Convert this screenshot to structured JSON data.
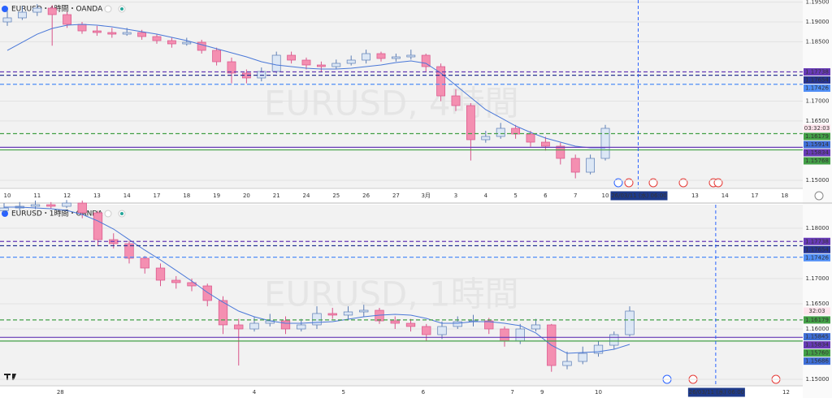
{
  "chart_data": [
    {
      "type": "candlestick",
      "title": "EURUSD・4時間・OANDA",
      "watermark": "EURUSD, 4時間",
      "ylim": [
        1.14795,
        1.19554
      ],
      "yticks": [
        {
          "value": 1.195,
          "label": "1.19500"
        },
        {
          "value": 1.19,
          "label": "1.19000"
        },
        {
          "value": 1.185,
          "label": "1.18500"
        },
        {
          "value": 1.17,
          "label": "1.17000"
        },
        {
          "value": 1.165,
          "label": "1.16500"
        },
        {
          "value": 1.15,
          "label": "1.15000"
        }
      ],
      "up_color": "#dce7f5",
      "down_color": "#f48fb1",
      "ohlc": [
        [
          1.19,
          1.193,
          1.189,
          1.19103
        ],
        [
          1.19103,
          1.194,
          1.1905,
          1.19246
        ],
        [
          1.19246,
          1.1945,
          1.1915,
          1.19349
        ],
        [
          1.19349,
          1.1942,
          1.184,
          1.19185
        ],
        [
          1.19185,
          1.1925,
          1.1885,
          1.18939
        ],
        [
          1.18939,
          1.19,
          1.187,
          1.18774
        ],
        [
          1.18774,
          1.189,
          1.1865,
          1.18733
        ],
        [
          1.18733,
          1.1885,
          1.186,
          1.18692
        ],
        [
          1.18692,
          1.1885,
          1.1865,
          1.18733
        ],
        [
          1.18733,
          1.188,
          1.1855,
          1.18631
        ],
        [
          1.18631,
          1.187,
          1.1845,
          1.18528
        ],
        [
          1.18528,
          1.186,
          1.1835,
          1.18446
        ],
        [
          1.18446,
          1.186,
          1.184,
          1.18487
        ],
        [
          1.18487,
          1.1855,
          1.182,
          1.18282
        ],
        [
          1.18282,
          1.1835,
          1.179,
          1.17995
        ],
        [
          1.17995,
          1.181,
          1.1745,
          1.17708
        ],
        [
          1.17708,
          1.178,
          1.1745,
          1.17585
        ],
        [
          1.17585,
          1.1785,
          1.175,
          1.17749
        ],
        [
          1.17749,
          1.1825,
          1.177,
          1.18159
        ],
        [
          1.18159,
          1.1825,
          1.1795,
          1.18036
        ],
        [
          1.18036,
          1.181,
          1.178,
          1.17913
        ],
        [
          1.17913,
          1.18,
          1.1775,
          1.17872
        ],
        [
          1.17872,
          1.1805,
          1.178,
          1.17954
        ],
        [
          1.17954,
          1.1815,
          1.179,
          1.18036
        ],
        [
          1.18036,
          1.183,
          1.1795,
          1.182
        ],
        [
          1.182,
          1.1825,
          1.18,
          1.18077
        ],
        [
          1.18077,
          1.182,
          1.18,
          1.18118
        ],
        [
          1.18118,
          1.183,
          1.1805,
          1.18159
        ],
        [
          1.18159,
          1.182,
          1.1775,
          1.17872
        ],
        [
          1.17872,
          1.1795,
          1.17,
          1.17133
        ],
        [
          1.17133,
          1.173,
          1.1675,
          1.16887
        ],
        [
          1.16887,
          1.1695,
          1.155,
          1.16026
        ],
        [
          1.16026,
          1.1625,
          1.1595,
          1.16108
        ],
        [
          1.16108,
          1.1645,
          1.1605,
          1.16313
        ],
        [
          1.16313,
          1.164,
          1.1605,
          1.16169
        ],
        [
          1.16169,
          1.1625,
          1.1585,
          1.15964
        ],
        [
          1.15964,
          1.161,
          1.1575,
          1.15862
        ],
        [
          1.15862,
          1.1595,
          1.154,
          1.15554
        ],
        [
          1.15554,
          1.1565,
          1.1505,
          1.15205
        ],
        [
          1.15205,
          1.1565,
          1.1515,
          1.15554
        ],
        [
          1.15554,
          1.164,
          1.155,
          1.16313
        ]
      ],
      "ma": {
        "color": "#4a78d8",
        "values": [
          1.18282,
          1.18487,
          1.18692,
          1.18836,
          1.18918,
          1.18939,
          1.18918,
          1.18877,
          1.18815,
          1.18754,
          1.18692,
          1.1861,
          1.18528,
          1.18426,
          1.18323,
          1.18221,
          1.18118,
          1.17995,
          1.17913,
          1.17872,
          1.17831,
          1.1781,
          1.1781,
          1.17831,
          1.17872,
          1.17913,
          1.17974,
          1.18015,
          1.17954,
          1.17708,
          1.174,
          1.17092,
          1.16785,
          1.1658,
          1.16374,
          1.1621,
          1.16067,
          1.15964,
          1.15862,
          1.15821,
          1.15821
        ]
      },
      "levels": [
        {
          "value": 1.17738,
          "label": "1.17738",
          "color": "#673ab7",
          "line": "dashed"
        },
        {
          "value": 1.17654,
          "label": "1.17654",
          "color": "#283593",
          "line": "dashed"
        },
        {
          "value": 1.17426,
          "label": "1.17426",
          "color": "#4f8ef7",
          "line": "dashed"
        },
        {
          "value": 1.16179,
          "label": "1.16179",
          "color": "#43a047",
          "line": "dashed"
        },
        {
          "value": 1.15914,
          "label": "1.15914",
          "color": "#3f6fd8"
        },
        {
          "value": 1.15834,
          "label": "1.15834",
          "color": "#673ab7",
          "line": "solid"
        },
        {
          "value": 1.15768,
          "label": "1.15768",
          "color": "#43a047",
          "line": "solid"
        }
      ],
      "countdown": "03:32:03",
      "time_labels": [
        {
          "label": "10",
          "x": 0
        },
        {
          "label": "11",
          "x": 2
        },
        {
          "label": "12",
          "x": 4
        },
        {
          "label": "13",
          "x": 6
        },
        {
          "label": "14",
          "x": 8
        },
        {
          "label": "17",
          "x": 10
        },
        {
          "label": "18",
          "x": 12
        },
        {
          "label": "19",
          "x": 14
        },
        {
          "label": "20",
          "x": 16
        },
        {
          "label": "21",
          "x": 18
        },
        {
          "label": "24",
          "x": 20
        },
        {
          "label": "25",
          "x": 22
        },
        {
          "label": "26",
          "x": 24
        },
        {
          "label": "27",
          "x": 26
        },
        {
          "label": "3月",
          "x": 28
        },
        {
          "label": "3",
          "x": 30
        },
        {
          "label": "4",
          "x": 32
        },
        {
          "label": "5",
          "x": 34
        },
        {
          "label": "6",
          "x": 36
        },
        {
          "label": "7",
          "x": 38
        },
        {
          "label": "10",
          "x": 40
        },
        {
          "label": "13",
          "x": 46
        },
        {
          "label": "14",
          "x": 48
        },
        {
          "label": "17",
          "x": 50
        },
        {
          "label": "18",
          "x": 52
        }
      ],
      "cursor": {
        "label": "26/03/11 (水)  06:00",
        "x": 42.2
      }
    },
    {
      "type": "candlestick",
      "title": "EURUSD・1時間・OANDA",
      "watermark": "EURUSD, 1時間",
      "ylim": [
        1.14871,
        1.18468
      ],
      "yticks": [
        {
          "value": 1.18,
          "label": "1.18000"
        },
        {
          "value": 1.17,
          "label": "1.17000"
        },
        {
          "value": 1.165,
          "label": "1.16500"
        },
        {
          "value": 1.16,
          "label": "1.16000"
        },
        {
          "value": 1.15,
          "label": "1.15000"
        }
      ],
      "up_color": "#dce7f5",
      "down_color": "#f48fb1",
      "ohlc": [
        [
          1.1835,
          1.185,
          1.183,
          1.18403
        ],
        [
          1.18403,
          1.1852,
          1.1835,
          1.18436
        ],
        [
          1.18436,
          1.1855,
          1.1838,
          1.18468
        ],
        [
          1.18468,
          1.1852,
          1.1838,
          1.18436
        ],
        [
          1.18436,
          1.1856,
          1.184,
          1.185
        ],
        [
          1.185,
          1.1855,
          1.182,
          1.18307
        ],
        [
          1.18307,
          1.1835,
          1.1765,
          1.17774
        ],
        [
          1.17774,
          1.179,
          1.176,
          1.17694
        ],
        [
          1.17694,
          1.1775,
          1.173,
          1.17404
        ],
        [
          1.17404,
          1.1745,
          1.171,
          1.1721
        ],
        [
          1.1721,
          1.173,
          1.1685,
          1.16968
        ],
        [
          1.16968,
          1.1705,
          1.168,
          1.1692
        ],
        [
          1.1692,
          1.17,
          1.1675,
          1.16855
        ],
        [
          1.16855,
          1.169,
          1.1645,
          1.16565
        ],
        [
          1.16565,
          1.1665,
          1.159,
          1.16081
        ],
        [
          1.16081,
          1.162,
          1.15274,
          1.16
        ],
        [
          1.16,
          1.1625,
          1.1595,
          1.16113
        ],
        [
          1.16113,
          1.163,
          1.1605,
          1.16161
        ],
        [
          1.16161,
          1.1625,
          1.159,
          1.16
        ],
        [
          1.16,
          1.162,
          1.1595,
          1.16081
        ],
        [
          1.16081,
          1.1645,
          1.16,
          1.16307
        ],
        [
          1.16307,
          1.1642,
          1.162,
          1.16275
        ],
        [
          1.16275,
          1.1645,
          1.162,
          1.16339
        ],
        [
          1.16339,
          1.1648,
          1.1625,
          1.16371
        ],
        [
          1.16371,
          1.1642,
          1.161,
          1.16161
        ],
        [
          1.16161,
          1.1625,
          1.16,
          1.16113
        ],
        [
          1.16113,
          1.162,
          1.1595,
          1.16049
        ],
        [
          1.16049,
          1.161,
          1.1575,
          1.15887
        ],
        [
          1.15887,
          1.1615,
          1.158,
          1.16049
        ],
        [
          1.16049,
          1.1625,
          1.16,
          1.16145
        ],
        [
          1.16145,
          1.1628,
          1.1605,
          1.16161
        ],
        [
          1.16161,
          1.1622,
          1.159,
          1.16
        ],
        [
          1.16,
          1.1605,
          1.1565,
          1.15758
        ],
        [
          1.15758,
          1.161,
          1.157,
          1.16
        ],
        [
          1.16,
          1.162,
          1.1595,
          1.16081
        ],
        [
          1.16081,
          1.161,
          1.1515,
          1.15274
        ],
        [
          1.15274,
          1.1555,
          1.152,
          1.15355
        ],
        [
          1.15355,
          1.1565,
          1.153,
          1.15516
        ],
        [
          1.15516,
          1.1575,
          1.1545,
          1.15677
        ],
        [
          1.15677,
          1.1595,
          1.156,
          1.15887
        ],
        [
          1.15887,
          1.1645,
          1.1585,
          1.16355
        ]
      ],
      "ma": {
        "color": "#4a78d8",
        "values": [
          1.1842,
          1.1842,
          1.18403,
          1.18387,
          1.18355,
          1.18274,
          1.18145,
          1.17984,
          1.17774,
          1.17565,
          1.17371,
          1.17162,
          1.16952,
          1.16726,
          1.16532,
          1.16355,
          1.16242,
          1.16161,
          1.16113,
          1.16113,
          1.16129,
          1.16145,
          1.16194,
          1.16242,
          1.16275,
          1.16291,
          1.16275,
          1.1621,
          1.16113,
          1.16113,
          1.16145,
          1.16145,
          1.16113,
          1.16065,
          1.1592,
          1.15677,
          1.15516,
          1.15532,
          1.15548,
          1.15597,
          1.15694
        ]
      },
      "levels": [
        {
          "value": 1.17738,
          "label": "1.17738",
          "color": "#673ab7",
          "line": "dashed"
        },
        {
          "value": 1.17654,
          "label": "1.17654",
          "color": "#283593",
          "line": "dashed"
        },
        {
          "value": 1.17426,
          "label": "1.17426",
          "color": "#4f8ef7",
          "line": "dashed"
        },
        {
          "value": 1.16179,
          "label": "1.16179",
          "color": "#43a047",
          "line": "dashed"
        },
        {
          "value": 1.15845,
          "label": "1.15845",
          "color": "#3f6fd8"
        },
        {
          "value": 1.15834,
          "label": "1.15834",
          "color": "#673ab7",
          "line": "solid"
        },
        {
          "value": 1.1576,
          "label": "1.15760",
          "color": "#43a047",
          "line": "solid"
        },
        {
          "value": 1.15686,
          "label": "1.15686",
          "color": "#3f6fd8"
        }
      ],
      "countdown": "32:03",
      "time_labels": [
        {
          "label": "28",
          "x": 3.6
        },
        {
          "label": "4",
          "x": 16
        },
        {
          "label": "5",
          "x": 21.7
        },
        {
          "label": "6",
          "x": 26.8
        },
        {
          "label": "7",
          "x": 32.5
        },
        {
          "label": "9",
          "x": 34.4
        },
        {
          "label": "10",
          "x": 38
        },
        {
          "label": "12",
          "x": 50
        }
      ],
      "cursor": {
        "label": "26/03/11 (水)  06:00",
        "x": 45.5
      }
    }
  ]
}
